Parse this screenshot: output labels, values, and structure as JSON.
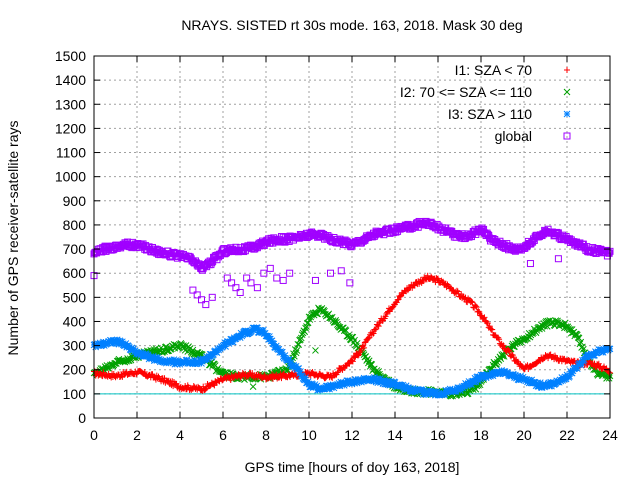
{
  "chart_data": {
    "type": "scatter",
    "title": "NRAYS. SISTED rt 30s mode. 163, 2018. Mask 30 deg",
    "xlabel": "GPS time [hours of doy 163, 2018]",
    "ylabel": "Number of GPS receiver-satellite rays",
    "xlim": [
      0,
      24
    ],
    "ylim": [
      0,
      1500
    ],
    "xticks": [
      "0",
      "2",
      "4",
      "6",
      "8",
      "10",
      "12",
      "14",
      "16",
      "18",
      "20",
      "22",
      "24"
    ],
    "yticks": [
      "0",
      "100",
      "200",
      "300",
      "400",
      "500",
      "600",
      "700",
      "800",
      "900",
      "1000",
      "1100",
      "1200",
      "1300",
      "1400",
      "1500"
    ],
    "grid": true,
    "legend_position": "top-right",
    "threshold_line": {
      "y": 100,
      "color": "#00c0c0"
    },
    "series": [
      {
        "name": "I1: SZA < 70",
        "marker": "plus",
        "color": "#ff0000",
        "x": [
          0,
          1,
          2,
          3,
          4,
          5,
          6,
          7,
          8,
          9,
          10,
          11,
          12,
          12.5,
          13,
          13.5,
          14,
          14.5,
          15,
          15.5,
          16,
          16.5,
          17,
          17.5,
          18,
          18.5,
          19,
          19.5,
          20,
          20.5,
          21,
          21.5,
          22,
          22.5,
          23,
          23.5,
          24
        ],
        "y": [
          185,
          175,
          190,
          165,
          130,
          120,
          160,
          180,
          170,
          175,
          185,
          170,
          240,
          290,
          360,
          420,
          480,
          530,
          560,
          580,
          570,
          545,
          510,
          480,
          430,
          360,
          300,
          250,
          200,
          230,
          260,
          250,
          235,
          225,
          230,
          215,
          195
        ]
      },
      {
        "name": "I2: 70 <= SZA <= 110",
        "marker": "cross",
        "color": "#00a000",
        "x": [
          0,
          1,
          2,
          3,
          4,
          5,
          6,
          7,
          8,
          9,
          9.5,
          10,
          10.5,
          11,
          11.5,
          12,
          12.5,
          13,
          14,
          15,
          16,
          17,
          17.5,
          18,
          18.5,
          19,
          19.5,
          20,
          20.5,
          21,
          21.5,
          22,
          22.5,
          23,
          23.5,
          24
        ],
        "y": [
          180,
          230,
          260,
          280,
          300,
          260,
          180,
          170,
          170,
          200,
          300,
          410,
          450,
          420,
          370,
          330,
          270,
          200,
          130,
          110,
          105,
          100,
          110,
          150,
          210,
          260,
          300,
          330,
          360,
          390,
          395,
          380,
          330,
          240,
          180,
          170
        ]
      },
      {
        "name": "I3: SZA > 110",
        "marker": "star",
        "color": "#0080ff",
        "x": [
          0,
          0.5,
          1,
          1.5,
          2,
          3,
          4,
          5,
          5.5,
          6,
          7,
          7.5,
          8,
          8.5,
          9,
          9.5,
          10,
          10.5,
          11,
          12,
          13,
          14,
          15,
          16,
          17,
          18,
          19,
          20,
          21,
          22,
          23,
          24
        ],
        "y": [
          300,
          310,
          320,
          300,
          270,
          240,
          230,
          235,
          260,
          300,
          350,
          370,
          350,
          290,
          240,
          200,
          140,
          120,
          130,
          150,
          160,
          140,
          110,
          100,
          120,
          170,
          190,
          160,
          130,
          170,
          260,
          290
        ]
      },
      {
        "name": "global",
        "marker": "square",
        "color": "#a000ff",
        "x": [
          0,
          0.5,
          1,
          1.5,
          2,
          2.5,
          3,
          3.5,
          4,
          4.5,
          5,
          5.5,
          6,
          6.5,
          7,
          7.5,
          8,
          8.5,
          9,
          9.5,
          10,
          10.5,
          11,
          11.5,
          12,
          12.5,
          13,
          13.5,
          14,
          14.5,
          15,
          15.5,
          16,
          16.5,
          17,
          17.5,
          18,
          18.5,
          19,
          19.5,
          20,
          20.5,
          21,
          21.5,
          22,
          22.5,
          23,
          23.5,
          24
        ],
        "y": [
          680,
          700,
          710,
          720,
          715,
          705,
          690,
          680,
          670,
          660,
          620,
          650,
          690,
          700,
          700,
          710,
          730,
          740,
          740,
          750,
          760,
          760,
          740,
          730,
          720,
          740,
          760,
          770,
          780,
          790,
          800,
          810,
          790,
          770,
          750,
          760,
          780,
          740,
          720,
          700,
          710,
          740,
          780,
          760,
          740,
          720,
          700,
          690,
          680
        ]
      }
    ],
    "outlier_points": {
      "global": {
        "x": [
          0.0,
          4.6,
          4.8,
          5.0,
          5.2,
          5.5,
          6.2,
          6.4,
          6.6,
          6.8,
          7.1,
          7.3,
          7.6,
          7.9,
          8.2,
          8.5,
          8.8,
          9.1,
          10.3,
          11.0,
          11.5,
          11.9,
          20.3,
          21.6
        ],
        "y": [
          590,
          530,
          510,
          490,
          470,
          500,
          580,
          560,
          540,
          520,
          580,
          560,
          540,
          600,
          620,
          580,
          570,
          600,
          570,
          600,
          610,
          560,
          640,
          660
        ]
      },
      "I2: 70 <= SZA <= 110": {
        "x": [
          7.4,
          9.0,
          10.3
        ],
        "y": [
          130,
          200,
          280
        ]
      }
    }
  }
}
